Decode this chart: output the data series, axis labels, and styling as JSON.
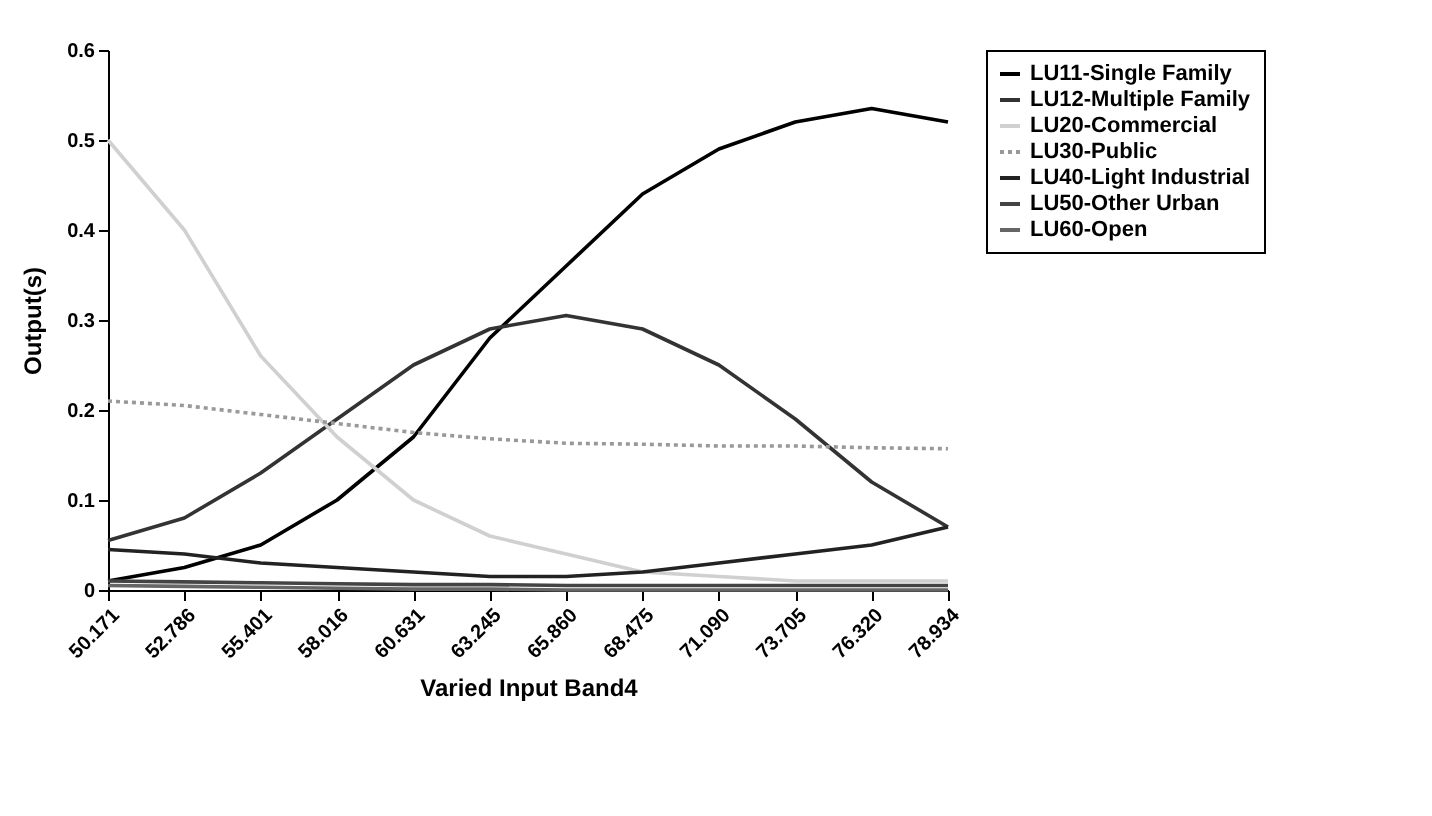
{
  "chart_data": {
    "type": "line",
    "xlabel": "Varied Input Band4",
    "ylabel": "Output(s)",
    "categories": [
      "50.171",
      "52.786",
      "55.401",
      "58.016",
      "60.631",
      "63.245",
      "65.860",
      "68.475",
      "71.090",
      "73.705",
      "76.320",
      "78.934"
    ],
    "ylim": [
      0,
      0.6
    ],
    "yticks": [
      0,
      0.1,
      0.2,
      0.3,
      0.4,
      0.5,
      0.6
    ],
    "grid": false,
    "legend": "right",
    "marker": "none",
    "series": [
      {
        "name": "LU11-Single Family",
        "color": "#000000",
        "values": [
          0.01,
          0.025,
          0.05,
          0.1,
          0.17,
          0.28,
          0.36,
          0.44,
          0.49,
          0.52,
          0.535,
          0.52
        ]
      },
      {
        "name": "LU12-Multiple Family",
        "color": "#333333",
        "values": [
          0.055,
          0.08,
          0.13,
          0.19,
          0.25,
          0.29,
          0.305,
          0.29,
          0.25,
          0.19,
          0.12,
          0.07
        ]
      },
      {
        "name": "LU20-Commercial",
        "color": "#d0d0d0",
        "values": [
          0.5,
          0.4,
          0.26,
          0.17,
          0.1,
          0.06,
          0.04,
          0.02,
          0.015,
          0.01,
          0.01,
          0.01
        ]
      },
      {
        "name": "LU30-Public",
        "color": "#999999",
        "line_style": "dotted",
        "values": [
          0.21,
          0.205,
          0.195,
          0.185,
          0.175,
          0.168,
          0.163,
          0.162,
          0.16,
          0.16,
          0.158,
          0.157
        ]
      },
      {
        "name": "LU40-Light Industrial",
        "color": "#222222",
        "values": [
          0.045,
          0.04,
          0.03,
          0.025,
          0.02,
          0.015,
          0.015,
          0.02,
          0.03,
          0.04,
          0.05,
          0.07
        ]
      },
      {
        "name": "LU50-Other Urban",
        "color": "#444444",
        "values": [
          0.01,
          0.009,
          0.008,
          0.007,
          0.006,
          0.006,
          0.005,
          0.005,
          0.005,
          0.005,
          0.005,
          0.005
        ]
      },
      {
        "name": "LU60-Open",
        "color": "#666666",
        "values": [
          0.005,
          0.004,
          0.003,
          0.002,
          0.001,
          0.001,
          0,
          0,
          0,
          0,
          0,
          0
        ]
      }
    ]
  }
}
